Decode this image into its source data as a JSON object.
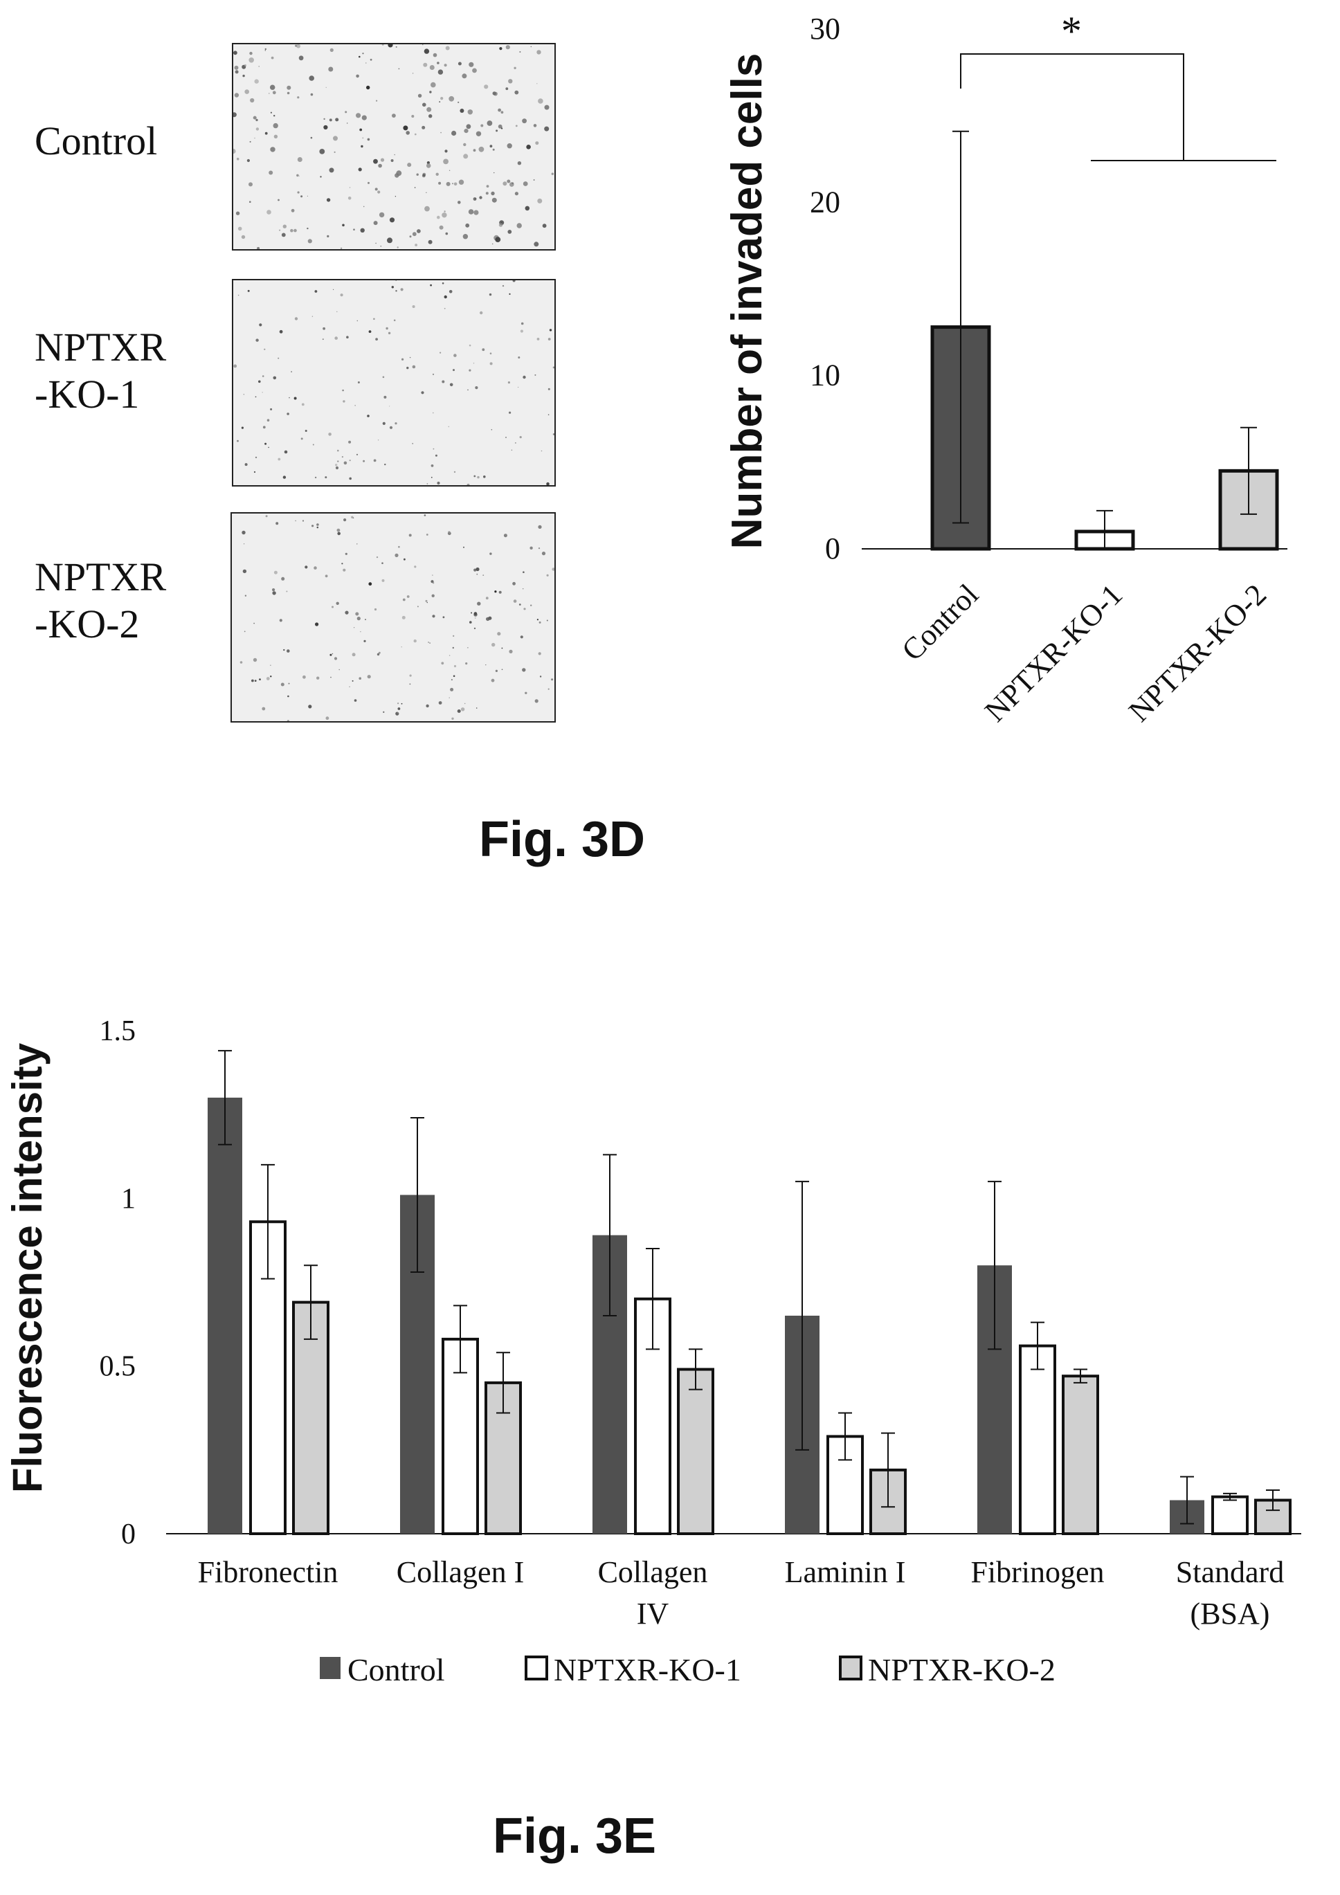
{
  "fig3d": {
    "caption": "Fig. 3D",
    "image_labels": [
      [
        "Control"
      ],
      [
        "NPTXR",
        "-KO-1"
      ],
      [
        "NPTXR",
        "-KO-2"
      ]
    ],
    "significance_marker": "*"
  },
  "fig3e": {
    "caption": "Fig. 3E"
  },
  "colors": {
    "control": "#505050",
    "ko1": "#ffffff",
    "ko2": "#d0d0d0",
    "stroke": "#111111"
  },
  "chart_data": [
    {
      "type": "bar",
      "ylabel": "Number of invaded cells",
      "ylim": [
        0,
        30
      ],
      "yticks": [
        "0",
        "10",
        "20",
        "30"
      ],
      "categories": [
        "Control",
        "NPTXR-KO-1",
        "NPTXR-KO-2"
      ],
      "values": [
        12.8,
        1.0,
        4.5
      ],
      "error": [
        11.3,
        1.2,
        2.5
      ],
      "grid": false,
      "legend": "none"
    },
    {
      "type": "bar",
      "ylabel": "Fluorescence intensity",
      "ylim": [
        0,
        1.5
      ],
      "yticks": [
        "0",
        "0.5",
        "1",
        "1.5"
      ],
      "categories": [
        [
          "Fibronectin"
        ],
        [
          "Collagen I"
        ],
        [
          "Collagen",
          "IV"
        ],
        [
          "Laminin I"
        ],
        [
          "Fibrinogen"
        ],
        [
          "Standard",
          "(BSA)"
        ]
      ],
      "series": [
        {
          "name": "Control",
          "values": [
            1.3,
            1.01,
            0.89,
            0.65,
            0.8,
            0.1
          ],
          "error": [
            0.14,
            0.23,
            0.24,
            0.4,
            0.25,
            0.07
          ]
        },
        {
          "name": "NPTXR-KO-1",
          "values": [
            0.93,
            0.58,
            0.7,
            0.29,
            0.56,
            0.11
          ],
          "error": [
            0.17,
            0.1,
            0.15,
            0.07,
            0.07,
            0.01
          ]
        },
        {
          "name": "NPTXR-KO-2",
          "values": [
            0.69,
            0.45,
            0.49,
            0.19,
            0.47,
            0.1
          ],
          "error": [
            0.11,
            0.09,
            0.06,
            0.11,
            0.02,
            0.03
          ]
        }
      ],
      "grid": false,
      "legend": "bottom"
    }
  ]
}
